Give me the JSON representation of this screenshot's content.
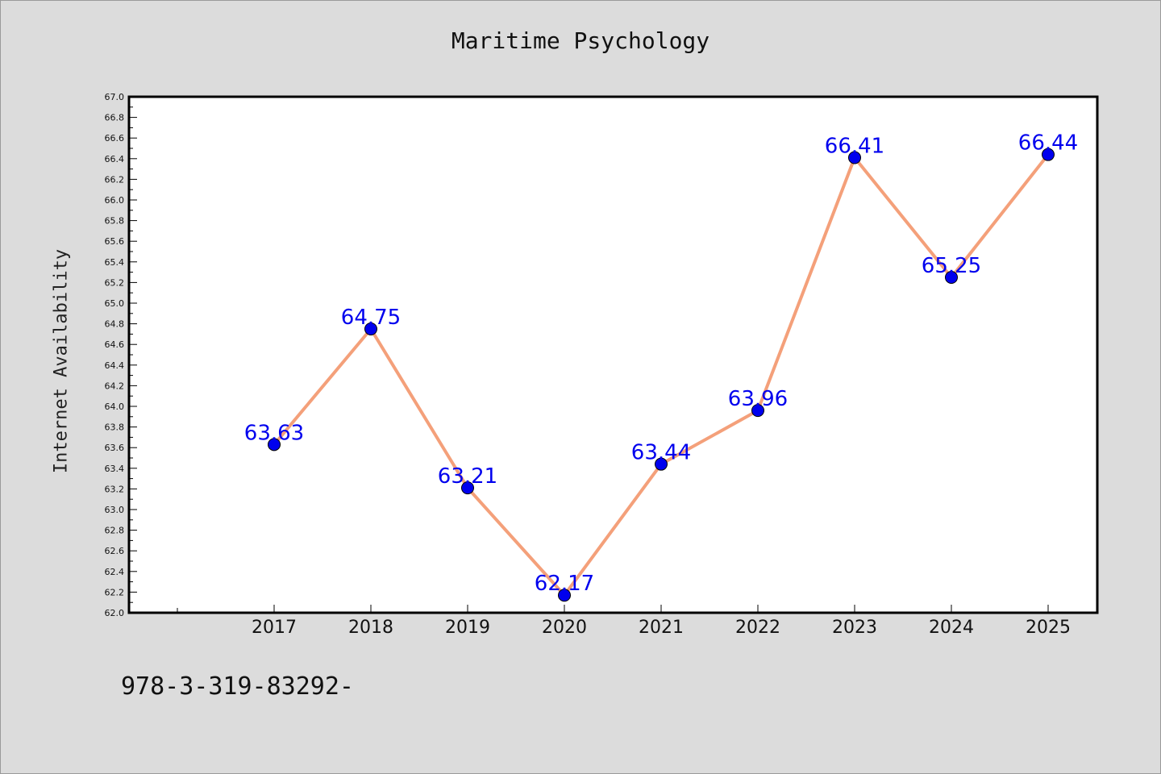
{
  "chart_data": {
    "type": "line",
    "title": "Maritime Psychology",
    "xlabel": "",
    "ylabel": "Internet Availability",
    "categories": [
      "2017",
      "2018",
      "2019",
      "2020",
      "2021",
      "2022",
      "2023",
      "2024",
      "2025"
    ],
    "values": [
      63.63,
      64.75,
      63.21,
      62.17,
      63.44,
      63.96,
      66.41,
      65.25,
      66.44
    ],
    "data_labels": [
      "63.63",
      "64.75",
      "63.21",
      "62.17",
      "63.44",
      "63.96",
      "66.41",
      "65.25",
      "66.44"
    ],
    "ylim": [
      62.0,
      67.0
    ],
    "yticks_major_step": 0.2,
    "y_tick_labels": [
      "62.0",
      "62.2",
      "62.4",
      "62.6",
      "62.8",
      "63.0",
      "63.2",
      "63.4",
      "63.6",
      "63.8",
      "64.0",
      "64.2",
      "64.4",
      "64.6",
      "64.8",
      "65.0",
      "65.2",
      "65.4",
      "65.6",
      "65.8",
      "66.0",
      "66.2",
      "66.4",
      "66.6",
      "66.8",
      "67.0"
    ],
    "grid": false,
    "line_color": "#f4a07a",
    "marker_color": "#0000ee",
    "label_color": "#0000ee"
  },
  "footer_text": "978-3-319-83292-"
}
